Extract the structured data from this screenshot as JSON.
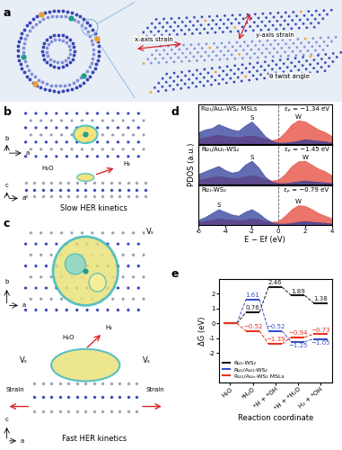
{
  "chart_data": [
    {
      "type": "area",
      "title": "Ru₁/Auₛ-WS₂ MSLs",
      "annotation": "εₚ = −1.34 eV",
      "xlim": [
        -6,
        4
      ],
      "xticks": [
        -6,
        -4,
        -2,
        0,
        2,
        4
      ],
      "ylim": [
        0,
        1.5
      ],
      "yticks": [],
      "tick_labels": false,
      "x": [
        -6,
        -5.5,
        -5,
        -4.5,
        -4,
        -3.5,
        -3,
        -2.5,
        -2,
        -1.5,
        -1,
        -0.5,
        0,
        0.5,
        1,
        1.5,
        2,
        2.5,
        3,
        3.5,
        4
      ],
      "series": [
        {
          "name": "W",
          "color": "#e5453a",
          "values": [
            0.2,
            0.25,
            0.3,
            0.35,
            0.3,
            0.28,
            0.25,
            0.3,
            0.32,
            0.28,
            0.2,
            0.15,
            0.2,
            0.45,
            0.75,
            0.9,
            0.85,
            0.7,
            0.55,
            0.45,
            0.3
          ]
        },
        {
          "name": "S",
          "color": "#2e3c9a",
          "values": [
            0.45,
            0.55,
            0.6,
            0.75,
            0.65,
            0.55,
            0.5,
            0.7,
            0.85,
            0.6,
            0.3,
            0.12,
            0.05,
            0.05,
            0.08,
            0.12,
            0.18,
            0.15,
            0.12,
            0.1,
            0.05
          ]
        }
      ]
    },
    {
      "type": "area",
      "title": "Ru₁/Au₁-WS₂",
      "annotation": "εₚ = −1.45 eV",
      "ylabel": "PDOS (a.u.)",
      "xlim": [
        -6,
        4
      ],
      "xticks": [
        -6,
        -4,
        -2,
        0,
        2,
        4
      ],
      "ylim": [
        0,
        1.5
      ],
      "yticks": [],
      "tick_labels": false,
      "x": [
        -6,
        -5.5,
        -5,
        -4.5,
        -4,
        -3.5,
        -3,
        -2.5,
        -2,
        -1.5,
        -1,
        -0.5,
        0,
        0.5,
        1,
        1.5,
        2,
        2.5,
        3,
        3.5,
        4
      ],
      "series": [
        {
          "name": "W",
          "color": "#e5453a",
          "values": [
            0.18,
            0.22,
            0.28,
            0.32,
            0.28,
            0.25,
            0.25,
            0.3,
            0.35,
            0.3,
            0.2,
            0.15,
            0.18,
            0.4,
            0.7,
            0.88,
            0.9,
            0.75,
            0.6,
            0.5,
            0.35
          ]
        },
        {
          "name": "S",
          "color": "#2e3c9a",
          "values": [
            0.4,
            0.5,
            0.6,
            0.7,
            0.55,
            0.45,
            0.5,
            0.75,
            0.9,
            0.65,
            0.3,
            0.1,
            0.05,
            0.05,
            0.08,
            0.12,
            0.15,
            0.12,
            0.1,
            0.08,
            0.05
          ]
        }
      ]
    },
    {
      "type": "area",
      "title": "Ru₁-WS₂",
      "annotation": "εₚ = −0.79 eV",
      "xlabel": "E − Ef (eV)",
      "xlim": [
        -6,
        4
      ],
      "xticks": [
        -6,
        -4,
        -2,
        0,
        2,
        4
      ],
      "ylim": [
        0,
        1.5
      ],
      "yticks": [],
      "tick_labels": "x",
      "x": [
        -6,
        -5.5,
        -5,
        -4.5,
        -4,
        -3.5,
        -3,
        -2.5,
        -2,
        -1.5,
        -1,
        -0.5,
        0,
        0.5,
        1,
        1.5,
        2,
        2.5,
        3,
        3.5,
        4
      ],
      "series": [
        {
          "name": "W",
          "color": "#e5453a",
          "values": [
            0.1,
            0.15,
            0.2,
            0.25,
            0.22,
            0.2,
            0.18,
            0.2,
            0.25,
            0.22,
            0.15,
            0.12,
            0.15,
            0.35,
            0.6,
            0.75,
            0.72,
            0.6,
            0.45,
            0.35,
            0.25
          ]
        },
        {
          "name": "S",
          "color": "#2e3c9a",
          "values": [
            0.2,
            0.3,
            0.45,
            0.6,
            0.5,
            0.4,
            0.35,
            0.5,
            0.6,
            0.45,
            0.25,
            0.1,
            0.05,
            0.05,
            0.08,
            0.12,
            0.15,
            0.12,
            0.1,
            0.08,
            0.05
          ]
        }
      ]
    },
    {
      "type": "line",
      "xlabel": "Reaction coordinate",
      "ylabel": "ΔG (eV)",
      "categories": [
        "H₂O",
        "*H₂O",
        "*H + *OH",
        "*H + *H₂O",
        "H₂ + *OH"
      ],
      "ylim": [
        -4.0,
        3.0
      ],
      "yticks": [
        -2,
        -1,
        0,
        1,
        2
      ],
      "legend": "lower left",
      "data_labels": true,
      "series": [
        {
          "name": "Ru₁-WS₂",
          "color": "#1a1a1a",
          "values": [
            0,
            0.76,
            2.46,
            1.89,
            1.38
          ],
          "value_labels": [
            null,
            "0.76",
            "2.46",
            "1.89",
            "1.38"
          ]
        },
        {
          "name": "Ru₁/Au₁-WS₂",
          "color": "#3a4fc4",
          "values": [
            0,
            1.61,
            -0.52,
            -1.25,
            -1.05
          ],
          "value_labels": [
            null,
            "1.61",
            "−0.52",
            "−1.25",
            "−1.05"
          ]
        },
        {
          "name": "Ru₁/Auₛ-WS₂ MSLs",
          "color": "#e8321e",
          "values": [
            0,
            -0.52,
            -1.39,
            -0.94,
            -0.73
          ],
          "value_labels": [
            null,
            "−0.52",
            "−1.39",
            "−0.94",
            "−0.73"
          ]
        }
      ]
    }
  ],
  "diagram": {
    "panel_labels": [
      "a",
      "b",
      "c",
      "d",
      "e"
    ],
    "a": {
      "labels": [
        "x-axis strain",
        "y-axis strain",
        "θ twist angle"
      ]
    },
    "b": {
      "top_axes": [
        "b",
        "a"
      ],
      "side_axes": [
        "c",
        "a"
      ],
      "reactant": "H₂O",
      "product": "H₂",
      "caption": "Slow HER kinetics"
    },
    "c": {
      "top_axes": [
        "b",
        "a"
      ],
      "side_axes": [
        "c",
        "a"
      ],
      "vacancy": "Vₛ",
      "strain": "Strain",
      "reactant": "H₂O",
      "product": "H₂",
      "caption": "Fast HER kinetics"
    }
  }
}
